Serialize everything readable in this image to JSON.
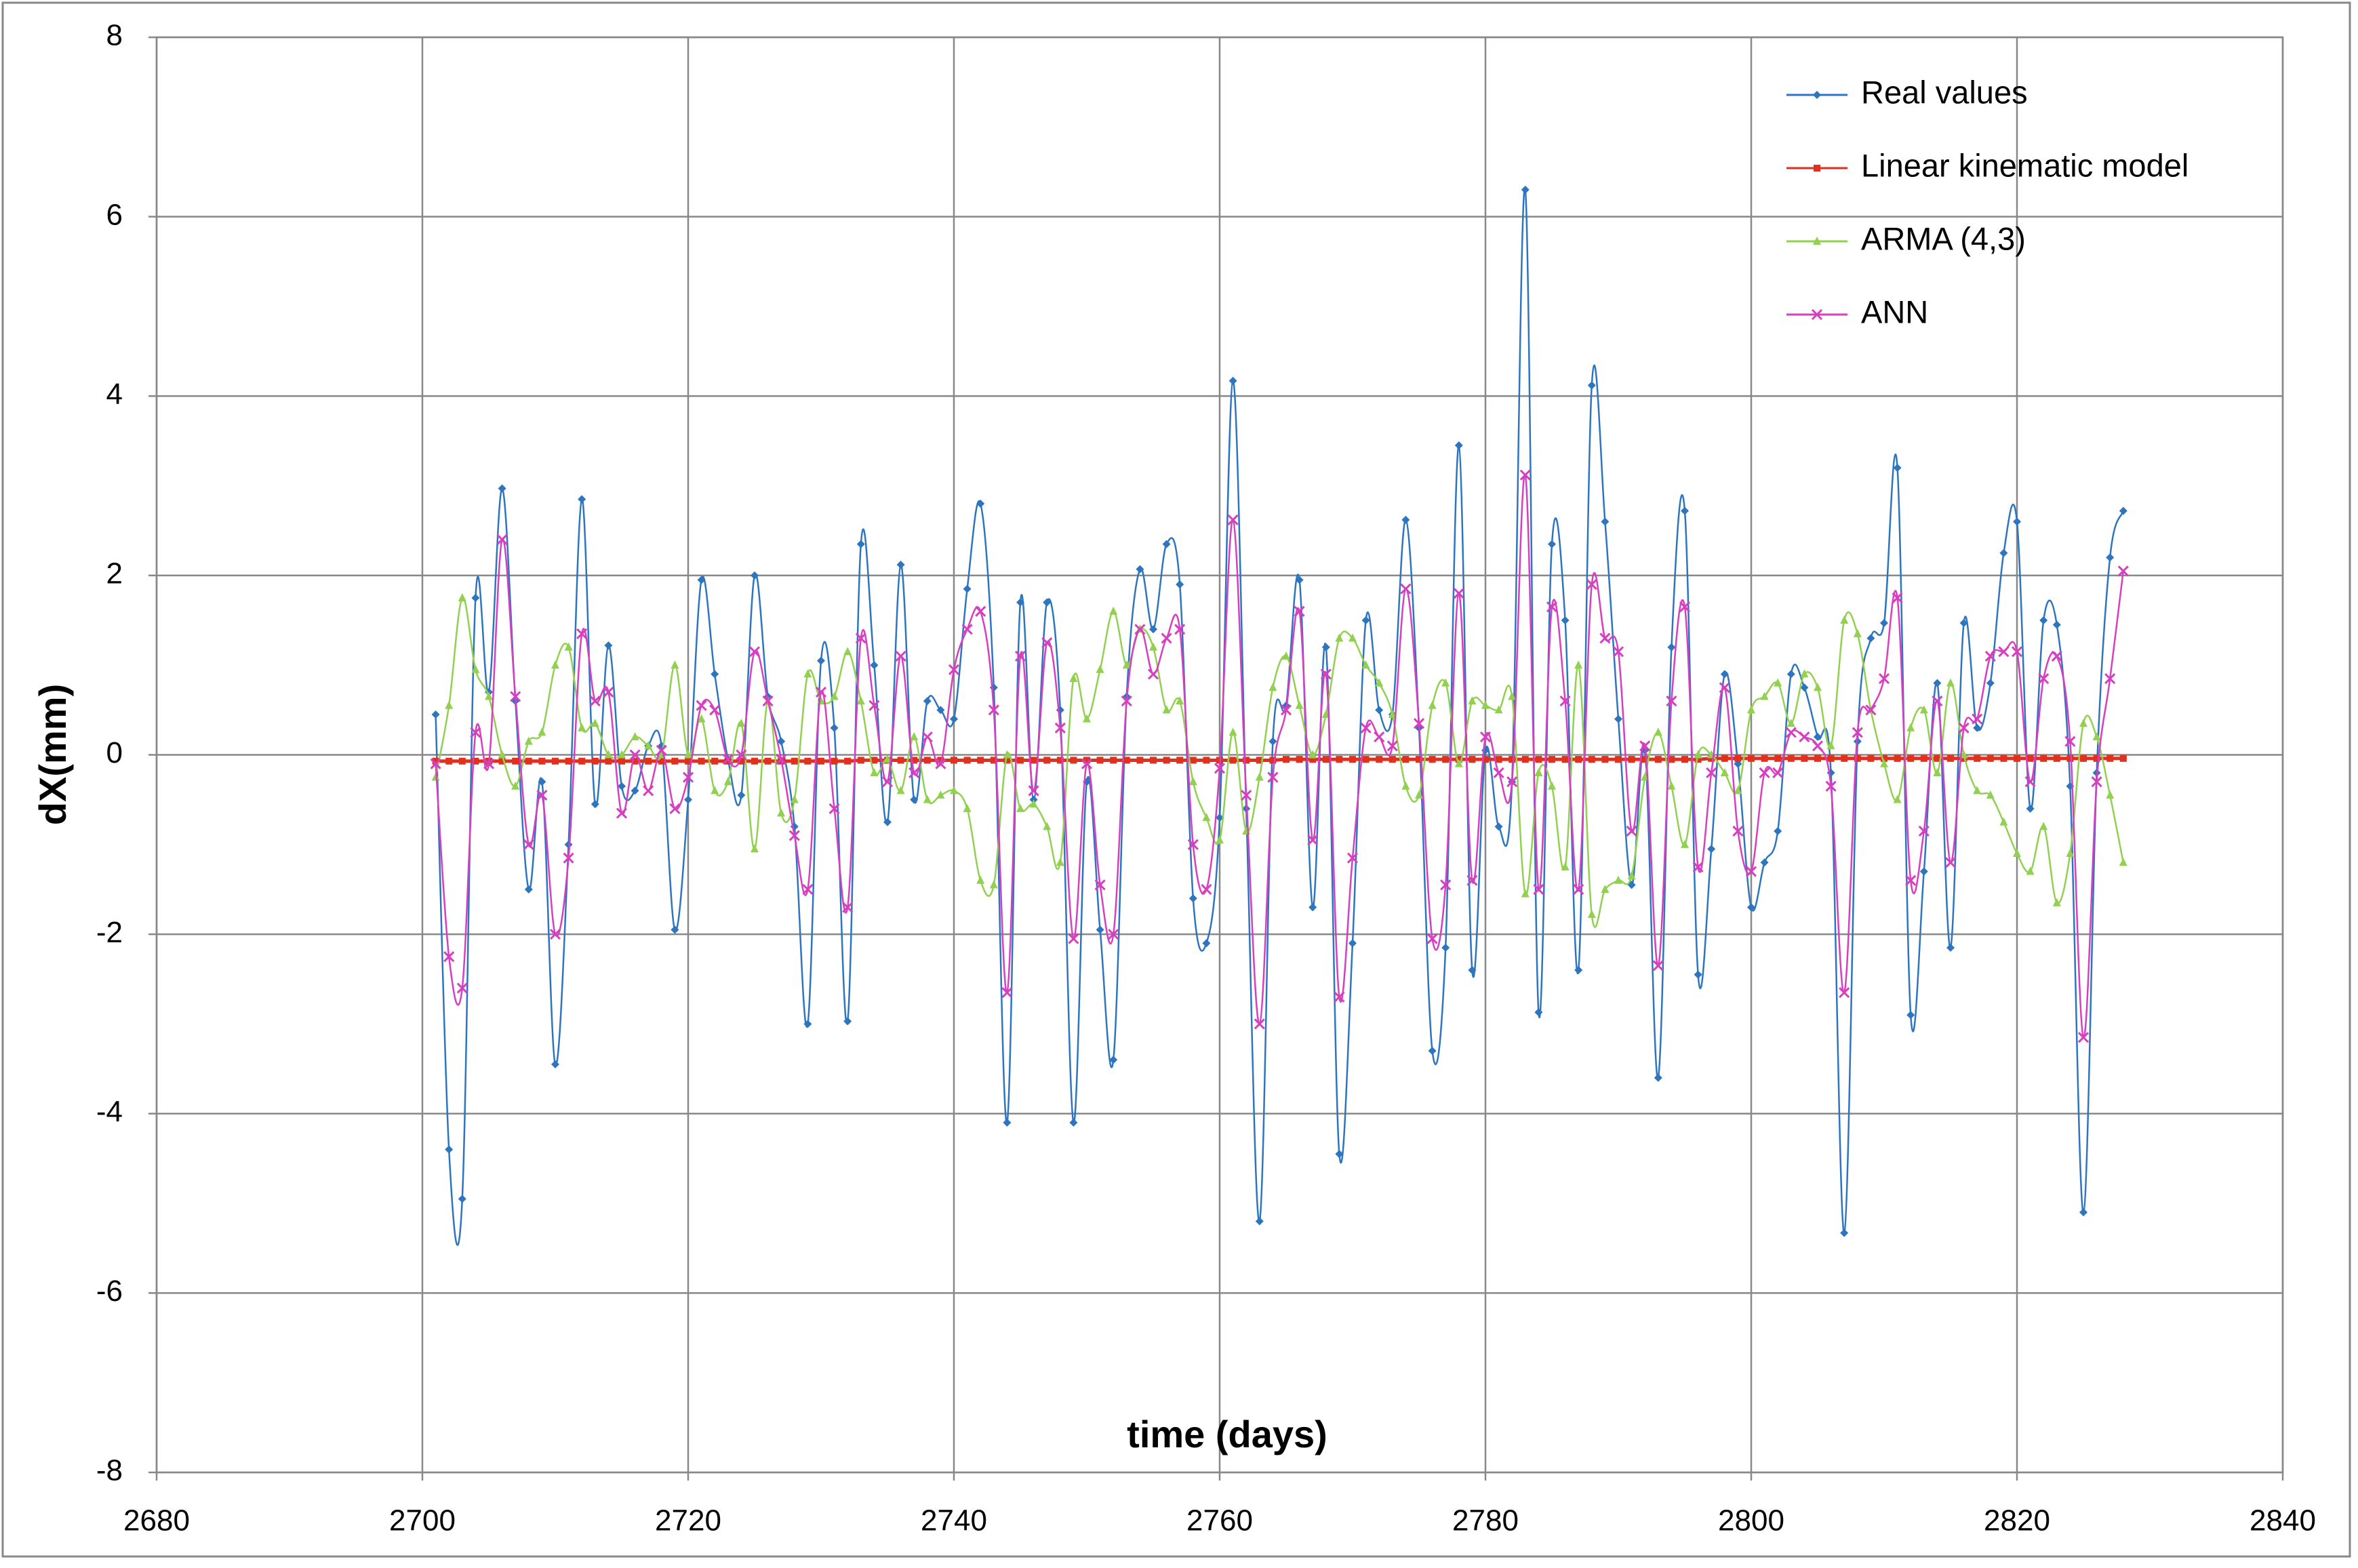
{
  "chart_data": {
    "type": "line",
    "x_label": "time (days)",
    "y_label": "dX(mm)",
    "xlim": [
      2680,
      2840
    ],
    "xticks": [
      2680,
      2700,
      2720,
      2740,
      2760,
      2780,
      2800,
      2820,
      2840
    ],
    "ylim": [
      -8,
      8
    ],
    "yticks": [
      -8,
      -6,
      -4,
      -2,
      0,
      2,
      4,
      6,
      8
    ],
    "grid": true,
    "legend": "upper right",
    "x": [
      2701,
      2702,
      2703,
      2704,
      2705,
      2706,
      2707,
      2708,
      2709,
      2710,
      2711,
      2712,
      2713,
      2714,
      2715,
      2716,
      2717,
      2718,
      2719,
      2720,
      2721,
      2722,
      2723,
      2724,
      2725,
      2726,
      2727,
      2728,
      2729,
      2730,
      2731,
      2732,
      2733,
      2734,
      2735,
      2736,
      2737,
      2738,
      2739,
      2740,
      2741,
      2742,
      2743,
      2744,
      2745,
      2746,
      2747,
      2748,
      2749,
      2750,
      2751,
      2752,
      2753,
      2754,
      2755,
      2756,
      2757,
      2758,
      2759,
      2760,
      2761,
      2762,
      2763,
      2764,
      2765,
      2766,
      2767,
      2768,
      2769,
      2770,
      2771,
      2772,
      2773,
      2774,
      2775,
      2776,
      2777,
      2778,
      2779,
      2780,
      2781,
      2782,
      2783,
      2784,
      2785,
      2786,
      2787,
      2788,
      2789,
      2790,
      2791,
      2792,
      2793,
      2794,
      2795,
      2796,
      2797,
      2798,
      2799,
      2800,
      2801,
      2802,
      2803,
      2804,
      2805,
      2806,
      2807,
      2808,
      2809,
      2810,
      2811,
      2812,
      2813,
      2814,
      2815,
      2816,
      2817,
      2818,
      2819,
      2820,
      2821,
      2822,
      2823,
      2824,
      2825,
      2826,
      2827,
      2828
    ],
    "series": [
      {
        "name": "Real values",
        "color": "#2e75c0",
        "marker": "diamond",
        "values": [
          0.45,
          -4.4,
          -4.95,
          1.75,
          0.7,
          2.97,
          0.6,
          -1.5,
          -0.3,
          -3.45,
          -1.0,
          2.85,
          -0.55,
          1.22,
          -0.35,
          -0.4,
          0.1,
          0.1,
          -1.95,
          -0.5,
          1.95,
          0.9,
          -0.05,
          -0.45,
          2.0,
          0.65,
          0.15,
          -0.8,
          -3.0,
          1.05,
          0.3,
          -2.97,
          2.35,
          1.0,
          -0.75,
          2.12,
          -0.5,
          0.6,
          0.5,
          0.4,
          1.85,
          2.8,
          0.75,
          -4.1,
          1.7,
          -0.5,
          1.7,
          0.5,
          -4.1,
          -0.3,
          -1.95,
          -3.4,
          0.65,
          2.07,
          1.4,
          2.35,
          1.9,
          -1.6,
          -2.1,
          -0.7,
          4.17,
          -0.6,
          -5.2,
          0.15,
          0.55,
          1.95,
          -1.7,
          1.2,
          -4.45,
          -2.1,
          1.5,
          0.5,
          0.45,
          2.62,
          0.3,
          -3.3,
          -2.15,
          3.45,
          -2.4,
          0.05,
          -0.8,
          -0.3,
          6.3,
          -2.87,
          2.35,
          1.5,
          -2.4,
          4.12,
          2.6,
          0.4,
          -1.45,
          0.05,
          -3.6,
          1.2,
          2.72,
          -2.45,
          -1.05,
          0.9,
          -0.1,
          -1.7,
          -1.2,
          -0.85,
          0.9,
          0.75,
          0.2,
          -0.2,
          -5.33,
          0.15,
          1.3,
          1.47,
          3.2,
          -2.9,
          -1.3,
          0.8,
          -2.15,
          1.47,
          0.3,
          0.8,
          2.25,
          2.6,
          -0.6,
          1.5,
          1.45,
          -0.35,
          -5.1,
          -0.2,
          2.2,
          2.72
        ]
      },
      {
        "name": "Linear kinematic model",
        "color": "#e0301e",
        "marker": "square",
        "values": [
          -0.07,
          -0.07,
          -0.07,
          -0.07,
          -0.07,
          -0.07,
          -0.07,
          -0.07,
          -0.07,
          -0.07,
          -0.07,
          -0.07,
          -0.07,
          -0.07,
          -0.07,
          -0.07,
          -0.07,
          -0.07,
          -0.07,
          -0.07,
          -0.07,
          -0.07,
          -0.07,
          -0.07,
          -0.07,
          -0.07,
          -0.07,
          -0.07,
          -0.07,
          -0.07,
          -0.07,
          -0.07,
          -0.06,
          -0.06,
          -0.06,
          -0.06,
          -0.06,
          -0.06,
          -0.06,
          -0.06,
          -0.06,
          -0.06,
          -0.06,
          -0.06,
          -0.06,
          -0.06,
          -0.06,
          -0.06,
          -0.06,
          -0.06,
          -0.06,
          -0.06,
          -0.06,
          -0.06,
          -0.06,
          -0.06,
          -0.06,
          -0.06,
          -0.06,
          -0.06,
          -0.06,
          -0.06,
          -0.06,
          -0.06,
          -0.05,
          -0.05,
          -0.05,
          -0.05,
          -0.05,
          -0.05,
          -0.05,
          -0.05,
          -0.05,
          -0.05,
          -0.05,
          -0.05,
          -0.05,
          -0.05,
          -0.05,
          -0.05,
          -0.05,
          -0.05,
          -0.05,
          -0.05,
          -0.05,
          -0.05,
          -0.05,
          -0.05,
          -0.05,
          -0.05,
          -0.05,
          -0.05,
          -0.05,
          -0.05,
          -0.05,
          -0.05,
          -0.04,
          -0.04,
          -0.04,
          -0.04,
          -0.04,
          -0.04,
          -0.04,
          -0.04,
          -0.04,
          -0.04,
          -0.04,
          -0.04,
          -0.04,
          -0.04,
          -0.04,
          -0.04,
          -0.04,
          -0.04,
          -0.04,
          -0.04,
          -0.04,
          -0.04,
          -0.04,
          -0.04,
          -0.04,
          -0.04,
          -0.04,
          -0.04,
          -0.04,
          -0.04,
          -0.04,
          -0.04
        ]
      },
      {
        "name": "ARMA (4,3)",
        "color": "#92d050",
        "marker": "triangle",
        "values": [
          -0.25,
          0.55,
          1.75,
          0.95,
          0.65,
          0.0,
          -0.35,
          0.15,
          0.25,
          1.0,
          1.2,
          0.3,
          0.35,
          0.0,
          0.0,
          0.2,
          0.1,
          0.0,
          1.0,
          0.0,
          0.4,
          -0.4,
          -0.3,
          0.35,
          -1.05,
          0.6,
          -0.65,
          -0.5,
          0.9,
          0.6,
          0.65,
          1.15,
          0.6,
          -0.2,
          -0.05,
          -0.4,
          0.2,
          -0.5,
          -0.45,
          -0.4,
          -0.6,
          -1.4,
          -1.45,
          0.0,
          -0.6,
          -0.55,
          -0.8,
          -1.2,
          0.85,
          0.4,
          0.95,
          1.6,
          1.0,
          1.4,
          1.2,
          0.5,
          0.6,
          -0.3,
          -0.7,
          -0.95,
          0.25,
          -0.85,
          -0.25,
          0.75,
          1.1,
          0.55,
          0.0,
          0.45,
          1.3,
          1.3,
          1.0,
          0.8,
          0.45,
          -0.35,
          -0.45,
          0.55,
          0.8,
          -0.1,
          0.6,
          0.55,
          0.5,
          0.65,
          -1.55,
          -0.2,
          -0.35,
          -1.25,
          1.0,
          -1.78,
          -1.5,
          -1.4,
          -1.35,
          -0.25,
          0.25,
          -0.35,
          -1.0,
          0.0,
          0.0,
          -0.2,
          -0.4,
          0.5,
          0.65,
          0.8,
          0.35,
          0.9,
          0.75,
          0.1,
          1.5,
          1.35,
          0.5,
          -0.1,
          -0.5,
          0.3,
          0.5,
          -0.2,
          0.8,
          0.0,
          -0.4,
          -0.45,
          -0.75,
          -1.1,
          -1.3,
          -0.8,
          -1.65,
          -1.1,
          0.35,
          0.2,
          -0.45,
          -1.2
        ]
      },
      {
        "name": "ANN",
        "color": "#d63fc0",
        "marker": "cross",
        "values": [
          -0.1,
          -2.25,
          -2.6,
          0.25,
          -0.1,
          2.4,
          0.65,
          -1.0,
          -0.45,
          -2.0,
          -1.15,
          1.35,
          0.6,
          0.7,
          -0.65,
          0.0,
          -0.4,
          0.05,
          -0.6,
          -0.25,
          0.55,
          0.5,
          -0.05,
          0.0,
          1.15,
          0.6,
          -0.05,
          -0.9,
          -1.5,
          0.7,
          -0.6,
          -1.7,
          1.3,
          0.55,
          -0.3,
          1.1,
          -0.2,
          0.2,
          -0.1,
          0.95,
          1.4,
          1.6,
          0.5,
          -2.65,
          1.1,
          -0.4,
          1.25,
          0.3,
          -2.05,
          -0.1,
          -1.45,
          -2.0,
          0.6,
          1.4,
          0.9,
          1.3,
          1.4,
          -1.0,
          -1.5,
          -0.15,
          2.62,
          -0.45,
          -3.0,
          -0.25,
          0.5,
          1.6,
          -0.95,
          0.9,
          -2.7,
          -1.15,
          0.3,
          0.2,
          0.1,
          1.85,
          0.35,
          -2.05,
          -1.45,
          1.8,
          -1.4,
          0.2,
          -0.2,
          -0.3,
          3.12,
          -1.5,
          1.65,
          0.6,
          -1.5,
          1.9,
          1.3,
          1.15,
          -0.85,
          0.1,
          -2.35,
          0.6,
          1.65,
          -1.25,
          -0.2,
          0.75,
          -0.85,
          -1.3,
          -0.2,
          -0.2,
          0.25,
          0.2,
          0.1,
          -0.35,
          -2.65,
          0.25,
          0.5,
          0.85,
          1.75,
          -1.4,
          -0.85,
          0.6,
          -1.2,
          0.3,
          0.4,
          1.1,
          1.15,
          1.15,
          -0.3,
          0.85,
          1.1,
          0.15,
          -3.15,
          -0.3,
          0.85,
          2.05
        ]
      }
    ]
  }
}
